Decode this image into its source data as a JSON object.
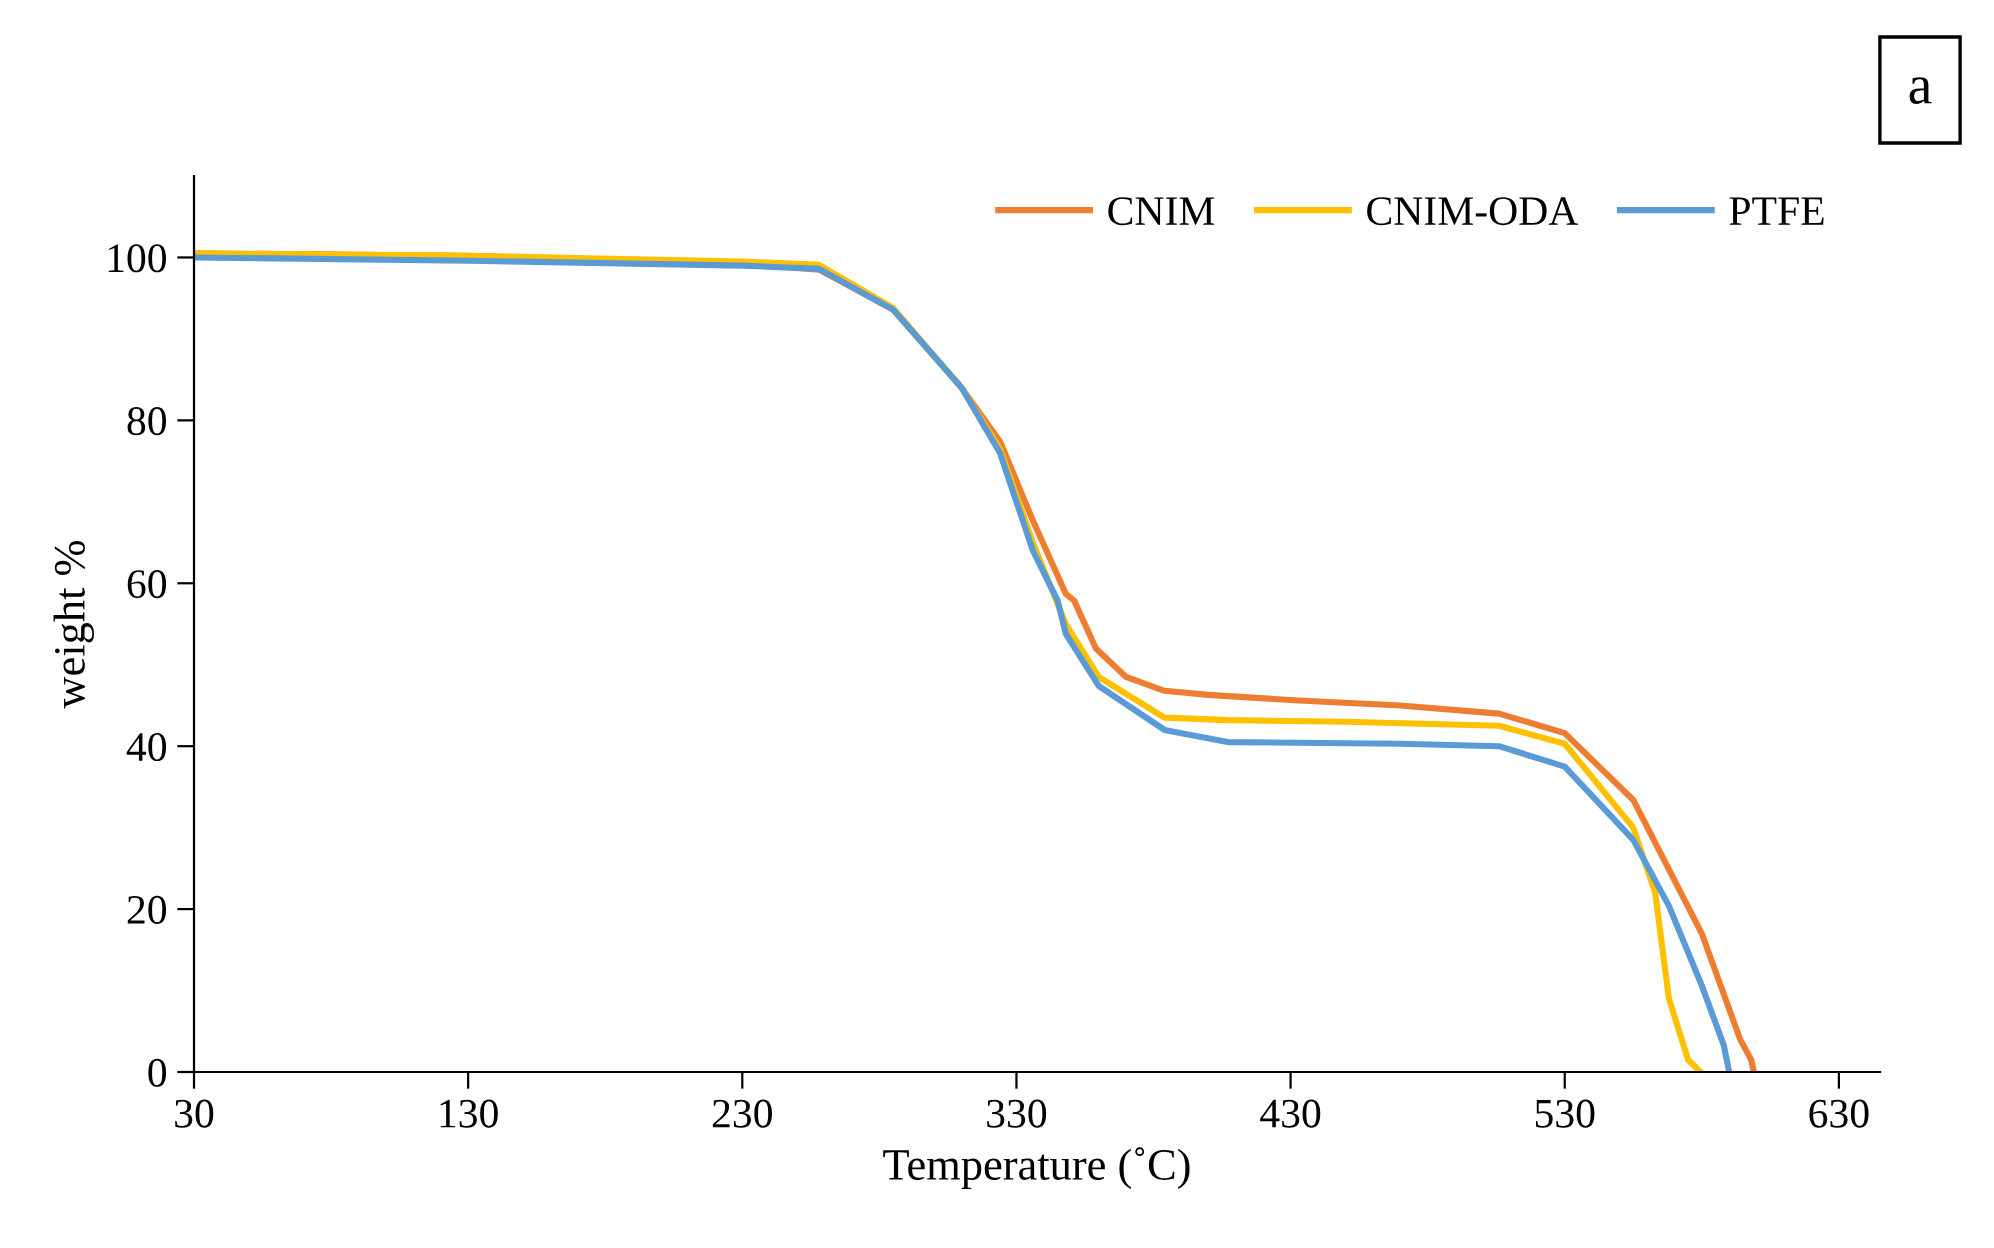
{
  "chart_data": {
    "type": "line",
    "xlabel": "Temperature (˚C)",
    "ylabel": "weight %",
    "annotations": [
      "a"
    ],
    "xlim": [
      30,
      645
    ],
    "xticks": [
      30,
      130,
      230,
      330,
      430,
      530,
      630
    ],
    "ylim": [
      0,
      110
    ],
    "yticks": [
      0,
      20,
      40,
      60,
      80,
      100
    ],
    "grid": false,
    "legend": "top right",
    "marker": "none",
    "line_style": "solid",
    "series": [
      {
        "name": "CNIM",
        "color": "#ed7d31",
        "x": [
          30,
          130,
          230,
          258,
          285,
          310,
          324,
          336,
          348,
          351,
          359,
          370,
          384,
          400,
          433,
          470,
          506,
          530,
          555,
          580,
          594,
          598,
          599
        ],
        "values": [
          100.5,
          100.2,
          99.3,
          98.5,
          93.6,
          84,
          77.4,
          67.7,
          58.7,
          57.9,
          52,
          48.5,
          46.8,
          46.3,
          45.6,
          45,
          44,
          41.6,
          33.4,
          17,
          4,
          1.5,
          0
        ]
      },
      {
        "name": "CNIM-ODA",
        "color": "#ffc000",
        "x": [
          30,
          130,
          230,
          258,
          285,
          310,
          324,
          336,
          348,
          360,
          384,
          407,
          450,
          506,
          530,
          555,
          563,
          568,
          575,
          579.5
        ],
        "values": [
          100.5,
          100.2,
          99.5,
          99.1,
          93.8,
          84,
          76.5,
          65,
          55,
          48.5,
          43.5,
          43.2,
          43,
          42.5,
          40.3,
          30,
          22,
          9,
          1.5,
          0
        ]
      },
      {
        "name": "PTFE",
        "color": "#5b9bd5",
        "x": [
          30,
          130,
          230,
          258,
          285,
          310,
          324,
          336,
          345,
          348,
          360,
          384,
          407,
          470,
          506,
          530,
          555,
          568,
          580,
          588,
          590
        ],
        "values": [
          100,
          99.6,
          99,
          98.6,
          93.6,
          84,
          76,
          64,
          57.9,
          53.8,
          47.4,
          42,
          40.5,
          40.3,
          40,
          37.5,
          28.5,
          20.4,
          10.6,
          3.3,
          0
        ]
      }
    ]
  }
}
